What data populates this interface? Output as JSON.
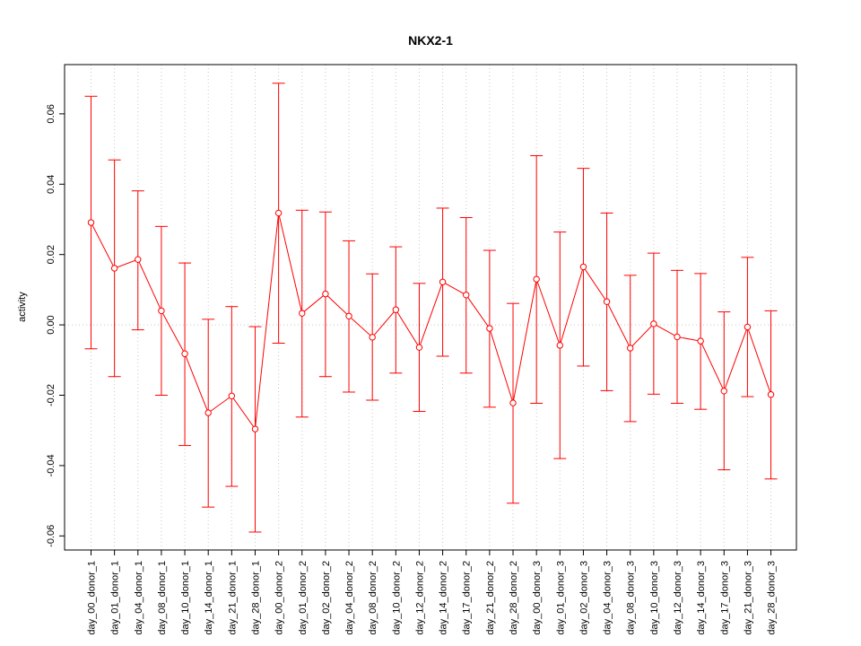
{
  "chart_data": {
    "type": "line",
    "title": "NKX2-1",
    "xlabel": "",
    "ylabel": "activity",
    "ylim": [
      -0.064,
      0.074
    ],
    "y_ticks": [
      -0.06,
      -0.04,
      -0.02,
      0.0,
      0.02,
      0.04,
      0.06
    ],
    "y_tick_labels": [
      "-0.06",
      "-0.04",
      "-0.02",
      "0.00",
      "0.02",
      "0.04",
      "0.06"
    ],
    "grid": "vertical dotted at each category, horizontal dotted at 0",
    "series_color": "#ff0000",
    "grid_color": "#c8c8c8",
    "categories": [
      "day_00_donor_1",
      "day_01_donor_1",
      "day_04_donor_1",
      "day_08_donor_1",
      "day_10_donor_1",
      "day_14_donor_1",
      "day_21_donor_1",
      "day_28_donor_1",
      "day_00_donor_2",
      "day_01_donor_2",
      "day_02_donor_2",
      "day_04_donor_2",
      "day_08_donor_2",
      "day_10_donor_2",
      "day_12_donor_2",
      "day_14_donor_2",
      "day_17_donor_2",
      "day_21_donor_2",
      "day_28_donor_2",
      "day_00_donor_3",
      "day_01_donor_3",
      "day_02_donor_3",
      "day_04_donor_3",
      "day_08_donor_3",
      "day_10_donor_3",
      "day_12_donor_3",
      "day_14_donor_3",
      "day_17_donor_3",
      "day_21_donor_3",
      "day_28_donor_3"
    ],
    "values": [
      0.0291,
      0.0161,
      0.0186,
      0.004,
      -0.0082,
      -0.025,
      -0.0202,
      -0.0296,
      0.0318,
      0.0033,
      0.0088,
      0.0025,
      -0.0035,
      0.0043,
      -0.0064,
      0.0122,
      0.0085,
      -0.001,
      -0.0222,
      0.013,
      -0.0058,
      0.0165,
      0.0066,
      -0.0066,
      0.0003,
      -0.0034,
      -0.0046,
      -0.0188,
      -0.0006,
      -0.0198
    ],
    "lower": [
      -0.0068,
      -0.0147,
      -0.0014,
      -0.02,
      -0.0343,
      -0.0518,
      -0.0459,
      -0.0589,
      -0.0052,
      -0.0262,
      -0.0147,
      -0.0191,
      -0.0214,
      -0.0137,
      -0.0246,
      -0.0089,
      -0.0137,
      -0.0234,
      -0.0507,
      -0.0223,
      -0.038,
      -0.0117,
      -0.0187,
      -0.0275,
      -0.0197,
      -0.0223,
      -0.024,
      -0.0412,
      -0.0204,
      -0.0438
    ],
    "upper": [
      0.065,
      0.0469,
      0.0381,
      0.028,
      0.0176,
      0.0016,
      0.0052,
      -0.0005,
      0.0687,
      0.0326,
      0.0321,
      0.0239,
      0.0145,
      0.0222,
      0.0118,
      0.0332,
      0.0305,
      0.0212,
      0.0061,
      0.0481,
      0.0264,
      0.0445,
      0.0318,
      0.0141,
      0.0204,
      0.0155,
      0.0146,
      0.0037,
      0.0192,
      0.004
    ]
  }
}
